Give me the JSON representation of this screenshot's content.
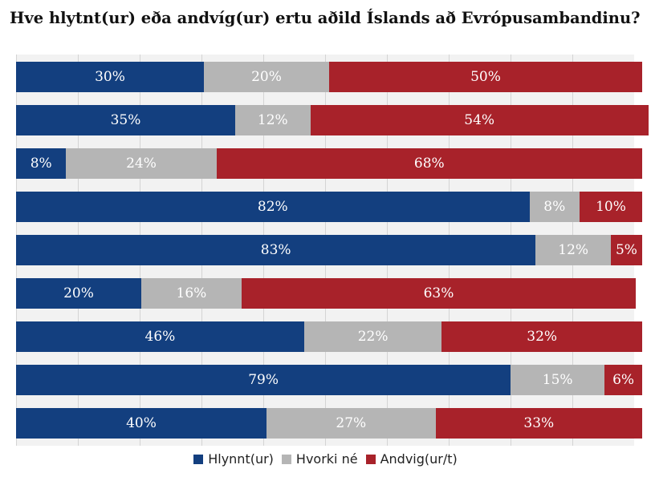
{
  "chart_data": {
    "type": "bar",
    "orientation": "horizontal",
    "stacked": true,
    "title": "Hve hlytnt(ur) eða andvíg(ur) ertu aðild Íslands að Evrópusambandinu?",
    "xlim": [
      0,
      100
    ],
    "grid": true,
    "legend_position": "bottom",
    "series": [
      {
        "name": "Hlynnt(ur)",
        "color": "#133f7f",
        "values": [
          30,
          35,
          8,
          82,
          83,
          20,
          46,
          79,
          40
        ]
      },
      {
        "name": "Hvorki né",
        "color": "#b5b5b5",
        "values": [
          20,
          12,
          24,
          8,
          12,
          16,
          22,
          15,
          27
        ]
      },
      {
        "name": "Andvig(ur/t)",
        "color": "#a8222a",
        "values": [
          50,
          54,
          68,
          10,
          5,
          63,
          32,
          6,
          33
        ]
      }
    ],
    "labels": [
      [
        "30%",
        "20%",
        "50%"
      ],
      [
        "35%",
        "12%",
        "54%"
      ],
      [
        "8%",
        "24%",
        "68%"
      ],
      [
        "82%",
        "8%",
        "10%"
      ],
      [
        "83%",
        "12%",
        "5%"
      ],
      [
        "20%",
        "16%",
        "63%"
      ],
      [
        "46%",
        "22%",
        "32%"
      ],
      [
        "79%",
        "15%",
        "6%"
      ],
      [
        "40%",
        "27%",
        "33%"
      ]
    ]
  }
}
